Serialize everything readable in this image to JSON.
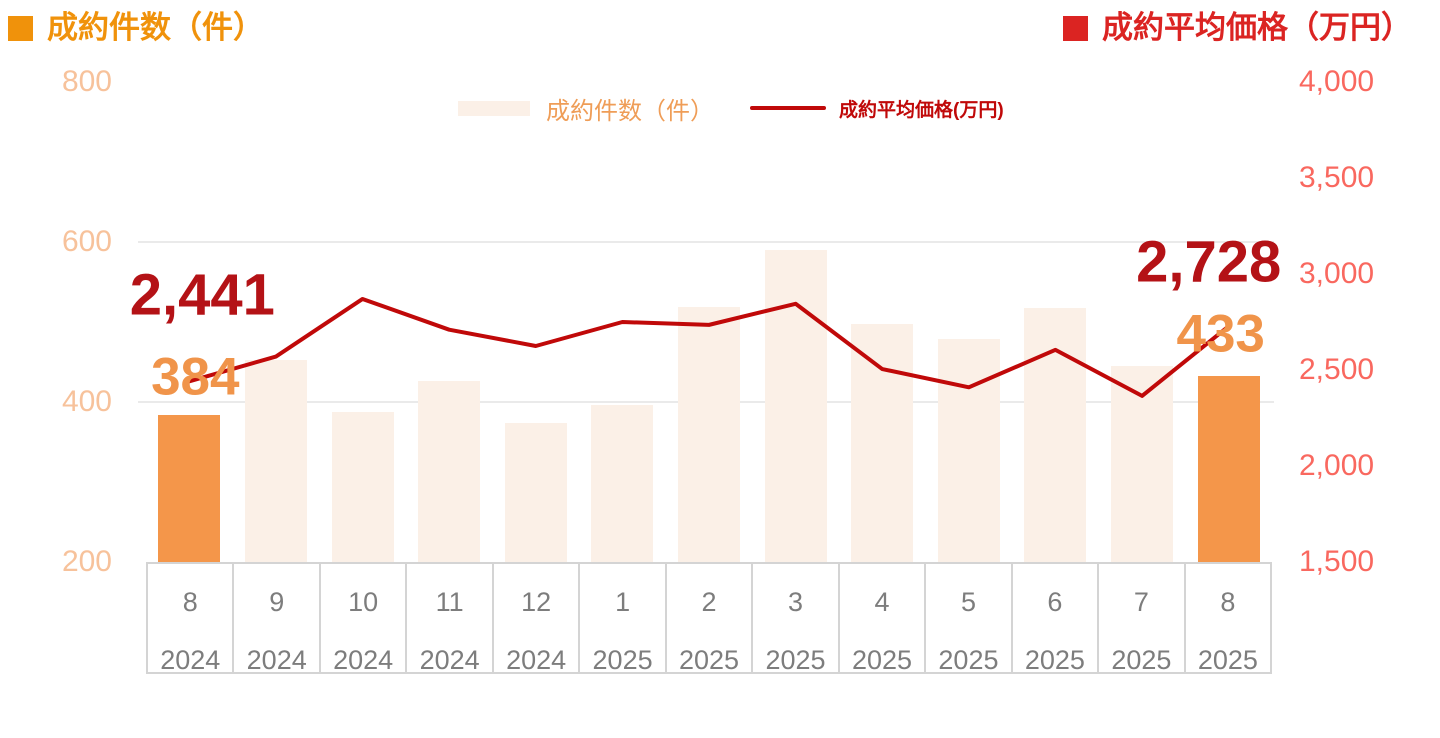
{
  "titles": {
    "left": "成約件数（件）",
    "right": "成約平均価格（万円）"
  },
  "legend": [
    {
      "label": "成約件数（件）",
      "series": "bar"
    },
    {
      "label": "成約平均価格(万円)",
      "series": "line"
    }
  ],
  "colors": {
    "bar": "#FBF0E7",
    "bar_highlight": "#F4964A",
    "line": "#C00909",
    "left_title": "#F0920B",
    "right_title": "#DB2422",
    "left_tick_text": "#F7C29B",
    "right_tick_text": "#F9685F",
    "price_label": "#B41216",
    "count_label": "#F0944A",
    "axis_text": "#7D7D7D"
  },
  "chart_data": {
    "type": "bar+line",
    "title": "",
    "categories": [
      {
        "month": "8",
        "year": "2024"
      },
      {
        "month": "9",
        "year": "2024"
      },
      {
        "month": "10",
        "year": "2024"
      },
      {
        "month": "11",
        "year": "2024"
      },
      {
        "month": "12",
        "year": "2024"
      },
      {
        "month": "1",
        "year": "2025"
      },
      {
        "month": "2",
        "year": "2025"
      },
      {
        "month": "3",
        "year": "2025"
      },
      {
        "month": "4",
        "year": "2025"
      },
      {
        "month": "5",
        "year": "2025"
      },
      {
        "month": "6",
        "year": "2025"
      },
      {
        "month": "7",
        "year": "2025"
      },
      {
        "month": "8",
        "year": "2025"
      }
    ],
    "series": [
      {
        "name": "成約件数（件）",
        "type": "bar",
        "axis": "left",
        "values": [
          384,
          453,
          388,
          426,
          374,
          396,
          519,
          590,
          498,
          479,
          517,
          445,
          433
        ],
        "highlight_indices": [
          0,
          12
        ]
      },
      {
        "name": "成約平均価格(万円)",
        "type": "line",
        "axis": "right",
        "values": [
          2441,
          2570,
          2870,
          2710,
          2625,
          2750,
          2735,
          2845,
          2505,
          2410,
          2605,
          2365,
          2728
        ]
      }
    ],
    "left_axis": {
      "label": "成約件数（件）",
      "range": [
        200,
        800
      ],
      "ticks": [
        {
          "label": "800",
          "value": 800
        },
        {
          "label": "600",
          "value": 600
        },
        {
          "label": "400",
          "value": 400
        },
        {
          "label": "200",
          "value": 200
        }
      ],
      "gridlines": [
        600,
        400
      ]
    },
    "right_axis": {
      "label": "成約平均価格（万円）",
      "range": [
        1500,
        4000
      ],
      "ticks": [
        {
          "label": "4,000",
          "value": 4000
        },
        {
          "label": "3,500",
          "value": 3500
        },
        {
          "label": "3,000",
          "value": 3000
        },
        {
          "label": "2,500",
          "value": 2500
        },
        {
          "label": "2,000",
          "value": 2000
        },
        {
          "label": "1,500",
          "value": 1500
        }
      ]
    },
    "annotations": [
      {
        "text": "2,441",
        "series": "line",
        "index": 0
      },
      {
        "text": "384",
        "series": "bar",
        "index": 0
      },
      {
        "text": "2,728",
        "series": "line",
        "index": 12
      },
      {
        "text": "433",
        "series": "bar",
        "index": 12
      }
    ]
  }
}
